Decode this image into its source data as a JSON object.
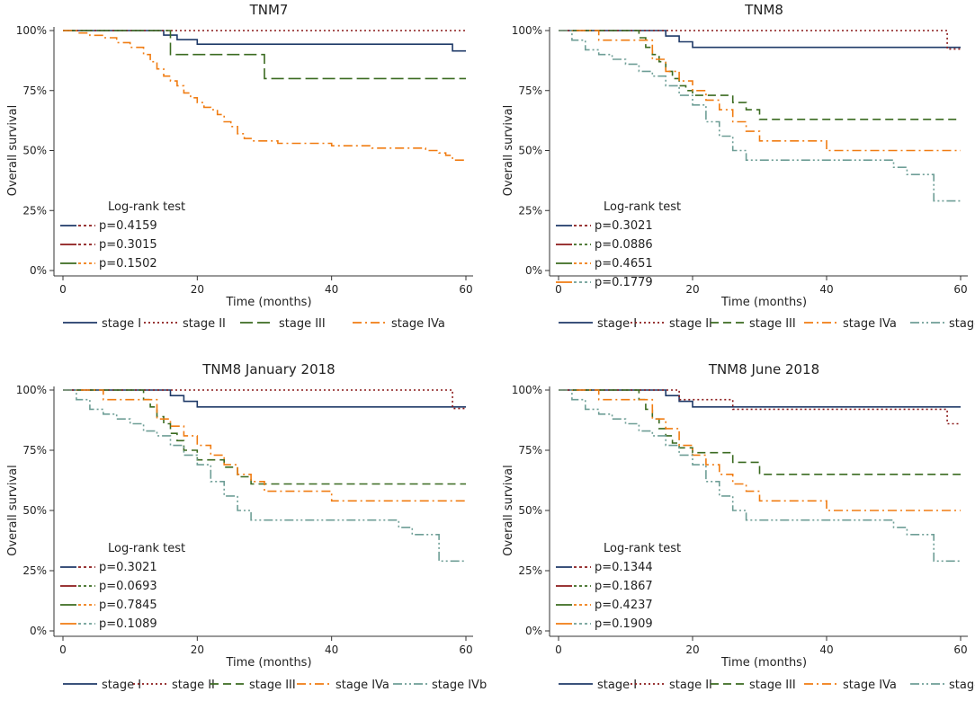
{
  "colors": {
    "stage_I": "#1f3a68",
    "stage_II": "#8b1a1a",
    "stage_III": "#3b6b21",
    "stage_IVa": "#f07c12",
    "stage_IVb": "#6e9e96"
  },
  "chart_data": [
    {
      "type": "line",
      "title": "TNM7",
      "xlabel": "Time (months)",
      "ylabel": "Overall survival",
      "xlim": [
        0,
        60
      ],
      "ylim": [
        0,
        1
      ],
      "xticks": [
        "0",
        "20",
        "40",
        "60"
      ],
      "yticks": [
        "0%",
        "25%",
        "50%",
        "75%",
        "100%"
      ],
      "legend_position": "bottom",
      "series": [
        {
          "name": "stage I",
          "key": "stage_I",
          "dash": "solid",
          "x": [
            0,
            14,
            15,
            17,
            17,
            20,
            20,
            58,
            58,
            60
          ],
          "y": [
            1,
            1,
            0.981,
            0.981,
            0.962,
            0.962,
            0.943,
            0.943,
            0.915,
            0.915
          ]
        },
        {
          "name": "stage II",
          "key": "stage_II",
          "dash": "dot",
          "x": [
            0,
            60
          ],
          "y": [
            1,
            1
          ]
        },
        {
          "name": "stage III",
          "key": "stage_III",
          "dash": "longdash",
          "x": [
            0,
            16,
            16,
            30,
            30,
            60
          ],
          "y": [
            1,
            1,
            0.9,
            0.9,
            0.8,
            0.8
          ]
        },
        {
          "name": "stage IVa",
          "key": "stage_IVa",
          "dash": "dashdot",
          "x": [
            0,
            2,
            4,
            6,
            8,
            10,
            12,
            13,
            14,
            15,
            16,
            17,
            18,
            19,
            20,
            21,
            22,
            23,
            24,
            25,
            26,
            27,
            28,
            30,
            32,
            36,
            40,
            46,
            50,
            54,
            56,
            57,
            58,
            60
          ],
          "y": [
            1,
            0.99,
            0.98,
            0.97,
            0.95,
            0.93,
            0.9,
            0.87,
            0.84,
            0.81,
            0.79,
            0.77,
            0.74,
            0.72,
            0.7,
            0.68,
            0.67,
            0.65,
            0.62,
            0.6,
            0.57,
            0.55,
            0.54,
            0.54,
            0.53,
            0.53,
            0.52,
            0.51,
            0.51,
            0.5,
            0.49,
            0.48,
            0.46,
            0.46
          ]
        }
      ],
      "legend_entries": [
        "stage I",
        "stage II",
        "stage III",
        "stage IVa"
      ],
      "logrank": {
        "title": "Log-rank test",
        "rows": [
          {
            "key_left": "stage_I",
            "key_right": "stage_II",
            "p": "p=0.4159"
          },
          {
            "key_left": "stage_II",
            "key_right": "stage_II",
            "p": "p=0.3015"
          },
          {
            "key_left": "stage_III",
            "key_right": "stage_IVa",
            "p": "p=0.1502"
          }
        ]
      }
    },
    {
      "type": "line",
      "title": "TNM8",
      "xlabel": "Time (months)",
      "ylabel": "Overall survival",
      "xlim": [
        0,
        60
      ],
      "ylim": [
        0,
        1
      ],
      "xticks": [
        "0",
        "20",
        "40",
        "60"
      ],
      "yticks": [
        "0%",
        "25%",
        "50%",
        "75%",
        "100%"
      ],
      "legend_position": "bottom",
      "series": [
        {
          "name": "stage I",
          "key": "stage_I",
          "dash": "solid",
          "x": [
            0,
            14,
            16,
            17,
            18,
            20,
            60
          ],
          "y": [
            1,
            1,
            0.977,
            0.977,
            0.953,
            0.93,
            0.93
          ]
        },
        {
          "name": "stage II",
          "key": "stage_II",
          "dash": "dot",
          "x": [
            0,
            58,
            58,
            60
          ],
          "y": [
            1,
            1,
            0.923,
            0.923
          ]
        },
        {
          "name": "stage III",
          "key": "stage_III",
          "dash": "dash",
          "x": [
            0,
            10,
            12,
            13,
            14,
            15,
            16,
            17,
            18,
            19,
            20,
            26,
            26,
            28,
            28,
            30,
            30,
            60
          ],
          "y": [
            1,
            1,
            0.97,
            0.93,
            0.9,
            0.87,
            0.83,
            0.8,
            0.77,
            0.75,
            0.73,
            0.73,
            0.7,
            0.7,
            0.67,
            0.67,
            0.63,
            0.63
          ]
        },
        {
          "name": "stage IVa",
          "key": "stage_IVa",
          "dash": "dashdot",
          "x": [
            0,
            4,
            6,
            12,
            14,
            16,
            18,
            20,
            22,
            24,
            26,
            28,
            30,
            36,
            40,
            60
          ],
          "y": [
            1,
            1,
            0.96,
            0.96,
            0.88,
            0.83,
            0.79,
            0.75,
            0.71,
            0.67,
            0.62,
            0.58,
            0.54,
            0.54,
            0.5,
            0.5
          ]
        },
        {
          "name": "stage IVb",
          "key": "stage_IVb",
          "dash": "dashdotdot",
          "x": [
            0,
            2,
            4,
            6,
            8,
            10,
            12,
            14,
            16,
            18,
            20,
            22,
            24,
            26,
            28,
            30,
            48,
            50,
            52,
            56,
            56,
            58,
            60
          ],
          "y": [
            1,
            0.96,
            0.92,
            0.9,
            0.88,
            0.86,
            0.83,
            0.81,
            0.77,
            0.73,
            0.69,
            0.62,
            0.56,
            0.5,
            0.46,
            0.46,
            0.46,
            0.43,
            0.4,
            0.4,
            0.29,
            0.29,
            0.29
          ]
        }
      ],
      "legend_entries": [
        "stage I",
        "stage II",
        "stage III",
        "stage IVa",
        "stage IVb"
      ],
      "logrank": {
        "title": "Log-rank test",
        "rows": [
          {
            "key_left": "stage_I",
            "key_right": "stage_II",
            "p": "p=0.3021"
          },
          {
            "key_left": "stage_II",
            "key_right": "stage_III",
            "p": "p=0.0886"
          },
          {
            "key_left": "stage_III",
            "key_right": "stage_IVa",
            "p": "p=0.4651"
          },
          {
            "key_left": "stage_IVa",
            "key_right": "stage_IVb",
            "p": "p=0.1779"
          }
        ]
      }
    },
    {
      "type": "line",
      "title": "TNM8 January 2018",
      "xlabel": "Time (months)",
      "ylabel": "Overall survival",
      "xlim": [
        0,
        60
      ],
      "ylim": [
        0,
        1
      ],
      "xticks": [
        "0",
        "20",
        "40",
        "60"
      ],
      "yticks": [
        "0%",
        "25%",
        "50%",
        "75%",
        "100%"
      ],
      "legend_position": "bottom",
      "series": [
        {
          "name": "stage I",
          "key": "stage_I",
          "dash": "solid",
          "x": [
            0,
            14,
            16,
            17,
            18,
            20,
            60
          ],
          "y": [
            1,
            1,
            0.977,
            0.977,
            0.953,
            0.93,
            0.93
          ]
        },
        {
          "name": "stage II",
          "key": "stage_II",
          "dash": "dot",
          "x": [
            0,
            58,
            58,
            60
          ],
          "y": [
            1,
            1,
            0.923,
            0.923
          ]
        },
        {
          "name": "stage III",
          "key": "stage_III",
          "dash": "dash",
          "x": [
            0,
            10,
            12,
            13,
            14,
            15,
            16,
            17,
            18,
            20,
            24,
            26,
            28,
            30,
            60
          ],
          "y": [
            1,
            1,
            0.96,
            0.93,
            0.89,
            0.86,
            0.82,
            0.79,
            0.75,
            0.71,
            0.68,
            0.64,
            0.61,
            0.61,
            0.61
          ]
        },
        {
          "name": "stage IVa",
          "key": "stage_IVa",
          "dash": "dashdot",
          "x": [
            0,
            4,
            6,
            12,
            14,
            16,
            18,
            20,
            22,
            24,
            26,
            28,
            30,
            36,
            40,
            60
          ],
          "y": [
            1,
            1,
            0.96,
            0.96,
            0.88,
            0.85,
            0.81,
            0.77,
            0.73,
            0.69,
            0.65,
            0.62,
            0.58,
            0.58,
            0.54,
            0.54
          ]
        },
        {
          "name": "stage IVb",
          "key": "stage_IVb",
          "dash": "dashdotdot",
          "x": [
            0,
            2,
            4,
            6,
            8,
            10,
            12,
            14,
            16,
            18,
            20,
            22,
            24,
            26,
            28,
            30,
            48,
            50,
            52,
            56,
            56,
            58,
            60
          ],
          "y": [
            1,
            0.96,
            0.92,
            0.9,
            0.88,
            0.86,
            0.83,
            0.81,
            0.77,
            0.73,
            0.69,
            0.62,
            0.56,
            0.5,
            0.46,
            0.46,
            0.46,
            0.43,
            0.4,
            0.4,
            0.29,
            0.29,
            0.29
          ]
        }
      ],
      "legend_entries": [
        "stage I",
        "stage II",
        "stage III",
        "stage IVa",
        "stage IVb"
      ],
      "logrank": {
        "title": "Log-rank test",
        "rows": [
          {
            "key_left": "stage_I",
            "key_right": "stage_II",
            "p": "p=0.3021"
          },
          {
            "key_left": "stage_II",
            "key_right": "stage_III",
            "p": "p=0.0693"
          },
          {
            "key_left": "stage_III",
            "key_right": "stage_IVa",
            "p": "p=0.7845"
          },
          {
            "key_left": "stage_IVa",
            "key_right": "stage_IVb",
            "p": "p=0.1089"
          }
        ]
      }
    },
    {
      "type": "line",
      "title": "TNM8 June 2018",
      "xlabel": "Time (months)",
      "ylabel": "Overall survival",
      "xlim": [
        0,
        60
      ],
      "ylim": [
        0,
        1
      ],
      "xticks": [
        "0",
        "20",
        "40",
        "60"
      ],
      "yticks": [
        "0%",
        "25%",
        "50%",
        "75%",
        "100%"
      ],
      "legend_position": "bottom",
      "series": [
        {
          "name": "stage I",
          "key": "stage_I",
          "dash": "solid",
          "x": [
            0,
            14,
            16,
            17,
            18,
            20,
            60
          ],
          "y": [
            1,
            1,
            0.977,
            0.977,
            0.953,
            0.93,
            0.93
          ]
        },
        {
          "name": "stage II",
          "key": "stage_II",
          "dash": "dot",
          "x": [
            0,
            18,
            18,
            26,
            26,
            58,
            58,
            60
          ],
          "y": [
            1,
            1,
            0.96,
            0.96,
            0.92,
            0.92,
            0.86,
            0.86
          ]
        },
        {
          "name": "stage III",
          "key": "stage_III",
          "dash": "dash",
          "x": [
            0,
            10,
            12,
            13,
            14,
            15,
            16,
            17,
            18,
            20,
            26,
            26,
            30,
            30,
            60
          ],
          "y": [
            1,
            1,
            0.96,
            0.92,
            0.88,
            0.84,
            0.81,
            0.78,
            0.76,
            0.74,
            0.74,
            0.7,
            0.7,
            0.65,
            0.65
          ]
        },
        {
          "name": "stage IVa",
          "key": "stage_IVa",
          "dash": "dashdot",
          "x": [
            0,
            4,
            6,
            12,
            14,
            16,
            18,
            20,
            22,
            24,
            26,
            28,
            30,
            36,
            40,
            60
          ],
          "y": [
            1,
            1,
            0.96,
            0.96,
            0.88,
            0.84,
            0.77,
            0.73,
            0.69,
            0.65,
            0.61,
            0.58,
            0.54,
            0.54,
            0.5,
            0.5
          ]
        },
        {
          "name": "stage IVb",
          "key": "stage_IVb",
          "dash": "dashdotdot",
          "x": [
            0,
            2,
            4,
            6,
            8,
            10,
            12,
            14,
            16,
            18,
            20,
            22,
            24,
            26,
            28,
            30,
            48,
            50,
            52,
            56,
            56,
            58,
            60
          ],
          "y": [
            1,
            0.96,
            0.92,
            0.9,
            0.88,
            0.86,
            0.83,
            0.81,
            0.77,
            0.73,
            0.69,
            0.62,
            0.56,
            0.5,
            0.46,
            0.46,
            0.46,
            0.43,
            0.4,
            0.4,
            0.29,
            0.29,
            0.29
          ]
        }
      ],
      "legend_entries": [
        "stage I",
        "stage II",
        "stage III",
        "stage IVa",
        "stage IVb"
      ],
      "logrank": {
        "title": "Log-rank test",
        "rows": [
          {
            "key_left": "stage_I",
            "key_right": "stage_II",
            "p": "p=0.1344"
          },
          {
            "key_left": "stage_II",
            "key_right": "stage_III",
            "p": "p=0.1867"
          },
          {
            "key_left": "stage_III",
            "key_right": "stage_IVa",
            "p": "p=0.4237"
          },
          {
            "key_left": "stage_IVa",
            "key_right": "stage_IVb",
            "p": "p=0.1909"
          }
        ]
      }
    }
  ]
}
